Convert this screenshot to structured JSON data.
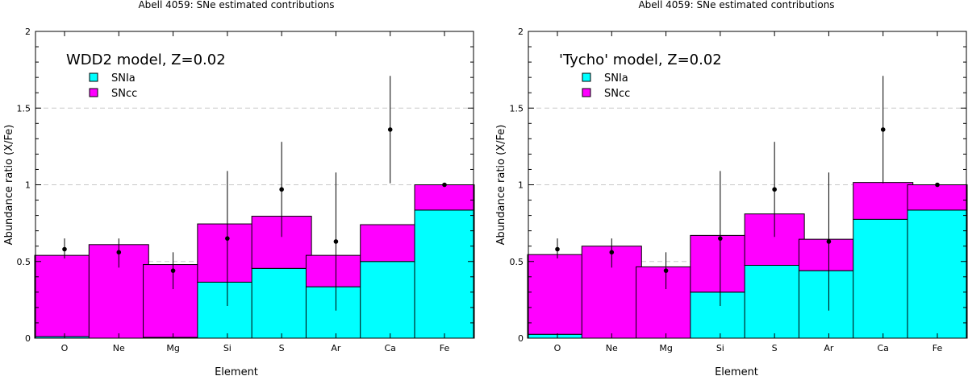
{
  "colors": {
    "snia": "#00ffff",
    "sncc": "#ff00ff",
    "grid": "#c8c8c8",
    "ink": "#000000"
  },
  "chart_data": [
    {
      "type": "bar",
      "stacked": true,
      "title": "Abell 4059: SNe estimated contributions",
      "annotation": "WDD2 model, Z=0.02",
      "xlabel": "Element",
      "ylabel": "Abundance ratio (X/Fe)",
      "ylim": [
        0,
        2
      ],
      "yticks": [
        "0",
        "0.5",
        "1",
        "1.5",
        "2"
      ],
      "grid": "dashed horizontal",
      "legend_position": "top-left",
      "categories": [
        "O",
        "Ne",
        "Mg",
        "Si",
        "S",
        "Ar",
        "Ca",
        "Fe"
      ],
      "series": [
        {
          "name": "SNIa",
          "color": "#00ffff",
          "values": [
            0.01,
            0.0,
            0.005,
            0.365,
            0.455,
            0.335,
            0.5,
            0.835
          ]
        },
        {
          "name": "SNcc",
          "color": "#ff00ff",
          "values": [
            0.53,
            0.61,
            0.475,
            0.38,
            0.34,
            0.205,
            0.24,
            0.165
          ]
        }
      ],
      "observed": {
        "name": "Observed",
        "values": [
          0.58,
          0.56,
          0.44,
          0.65,
          0.97,
          0.63,
          1.36,
          1.0
        ],
        "err_low": [
          0.52,
          0.46,
          0.32,
          0.21,
          0.66,
          0.18,
          1.01,
          1.0
        ],
        "err_high": [
          0.65,
          0.65,
          0.56,
          1.09,
          1.28,
          1.08,
          1.71,
          1.0
        ]
      }
    },
    {
      "type": "bar",
      "stacked": true,
      "title": "Abell 4059: SNe estimated contributions",
      "annotation": "'Tycho' model, Z=0.02",
      "xlabel": "Element",
      "ylabel": "Abundance ratio (X/Fe)",
      "ylim": [
        0,
        2
      ],
      "yticks": [
        "0",
        "0.5",
        "1",
        "1.5",
        "2"
      ],
      "grid": "dashed horizontal",
      "legend_position": "top-left",
      "categories": [
        "O",
        "Ne",
        "Mg",
        "Si",
        "S",
        "Ar",
        "Ca",
        "Fe"
      ],
      "series": [
        {
          "name": "SNIa",
          "color": "#00ffff",
          "values": [
            0.025,
            0.0,
            0.0,
            0.3,
            0.475,
            0.44,
            0.775,
            0.835
          ]
        },
        {
          "name": "SNcc",
          "color": "#ff00ff",
          "values": [
            0.52,
            0.6,
            0.465,
            0.37,
            0.335,
            0.205,
            0.24,
            0.165
          ]
        }
      ],
      "observed": {
        "name": "Observed",
        "values": [
          0.58,
          0.56,
          0.44,
          0.65,
          0.97,
          0.63,
          1.36,
          1.0
        ],
        "err_low": [
          0.52,
          0.46,
          0.32,
          0.21,
          0.66,
          0.18,
          1.01,
          1.0
        ],
        "err_high": [
          0.65,
          0.65,
          0.56,
          1.09,
          1.28,
          1.08,
          1.71,
          1.0
        ]
      }
    }
  ]
}
